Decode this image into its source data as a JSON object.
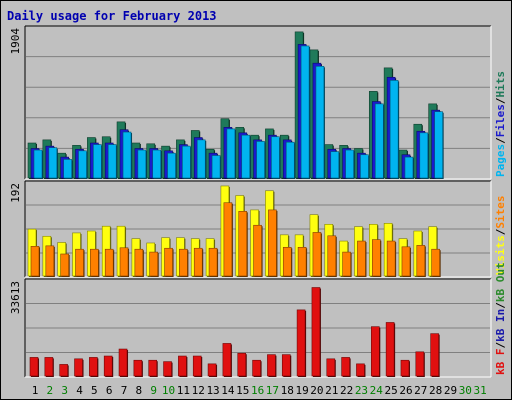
{
  "title": "Daily usage for February 2013",
  "colors": {
    "hits": "#1f7a5a",
    "files": "#1a1acc",
    "pages": "#00b4f0",
    "visits": "#ffff10",
    "sites": "#ff8000",
    "kb_out": "#2a8a2a",
    "kb_in": "#1a1aaa",
    "kb_f": "#e01010",
    "day_weekday": "#000000",
    "day_weekend": "#007f00",
    "panel_bg": "#c0c0c0",
    "grid": "#808080"
  },
  "chart_data": [
    {
      "type": "bar",
      "panel": "hits-files-pages",
      "ytick": "1904",
      "ylim": [
        0,
        1904
      ],
      "legend": {
        "pages": "Pages",
        "files": "Files",
        "hits": "Hits",
        "sep": "/"
      },
      "x": [
        1,
        2,
        3,
        4,
        5,
        6,
        7,
        8,
        9,
        10,
        11,
        12,
        13,
        14,
        15,
        16,
        17,
        18,
        19,
        20,
        21,
        22,
        23,
        24,
        25,
        26,
        27,
        28,
        29,
        30,
        31
      ],
      "series": [
        {
          "key": "hits",
          "values": [
            460,
            500,
            330,
            430,
            530,
            540,
            730,
            460,
            450,
            420,
            500,
            620,
            380,
            770,
            660,
            560,
            640,
            560,
            1880,
            1650,
            440,
            430,
            390,
            1120,
            1420,
            370,
            700,
            960,
            0,
            0,
            0
          ]
        },
        {
          "key": "files",
          "values": [
            390,
            420,
            280,
            380,
            460,
            460,
            630,
            390,
            390,
            360,
            440,
            530,
            330,
            660,
            590,
            500,
            560,
            500,
            1720,
            1480,
            380,
            390,
            330,
            990,
            1300,
            310,
            610,
            880,
            0,
            0,
            0
          ]
        },
        {
          "key": "pages",
          "values": [
            370,
            400,
            250,
            360,
            440,
            440,
            600,
            370,
            370,
            330,
            420,
            500,
            300,
            640,
            560,
            480,
            540,
            470,
            1700,
            1440,
            350,
            370,
            310,
            960,
            1260,
            280,
            590,
            860,
            0,
            0,
            0
          ]
        }
      ]
    },
    {
      "type": "bar",
      "panel": "visits-sites",
      "ytick": "192",
      "ylim": [
        0,
        192
      ],
      "legend": {
        "visits": "Visits",
        "sites": "Sites",
        "sep": "/"
      },
      "x": [
        1,
        2,
        3,
        4,
        5,
        6,
        7,
        8,
        9,
        10,
        11,
        12,
        13,
        14,
        15,
        16,
        17,
        18,
        19,
        20,
        21,
        22,
        23,
        24,
        25,
        26,
        27,
        28,
        29,
        30,
        31
      ],
      "series": [
        {
          "key": "visits",
          "values": [
            100,
            85,
            72,
            92,
            96,
            106,
            106,
            80,
            71,
            82,
            82,
            80,
            80,
            190,
            170,
            140,
            180,
            88,
            88,
            130,
            110,
            75,
            105,
            110,
            112,
            80,
            96,
            105,
            0,
            0,
            0
          ]
        },
        {
          "key": "sites",
          "values": [
            64,
            65,
            48,
            58,
            58,
            58,
            61,
            58,
            52,
            60,
            58,
            60,
            60,
            155,
            137,
            108,
            140,
            62,
            62,
            93,
            86,
            52,
            75,
            78,
            75,
            63,
            66,
            58,
            0,
            0,
            0
          ]
        }
      ]
    },
    {
      "type": "bar",
      "panel": "kbytes",
      "ytick": "33613",
      "ylim": [
        0,
        33613
      ],
      "legend": {
        "kb_f": "kB F",
        "kb_in": "kB In",
        "kb_out": "kB Out",
        "sep": "/"
      },
      "x": [
        1,
        2,
        3,
        4,
        5,
        6,
        7,
        8,
        9,
        10,
        11,
        12,
        13,
        14,
        15,
        16,
        17,
        18,
        19,
        20,
        21,
        22,
        23,
        24,
        25,
        26,
        27,
        28,
        29,
        30,
        31
      ],
      "series": [
        {
          "key": "kb_f",
          "values": [
            7000,
            7000,
            4500,
            6500,
            7000,
            7500,
            10000,
            6000,
            6000,
            5500,
            7500,
            7500,
            4700,
            12000,
            8500,
            6000,
            8000,
            8000,
            24000,
            32000,
            6500,
            7000,
            4700,
            18000,
            19500,
            6000,
            9000,
            15500,
            0,
            0,
            0
          ]
        }
      ]
    }
  ]
}
